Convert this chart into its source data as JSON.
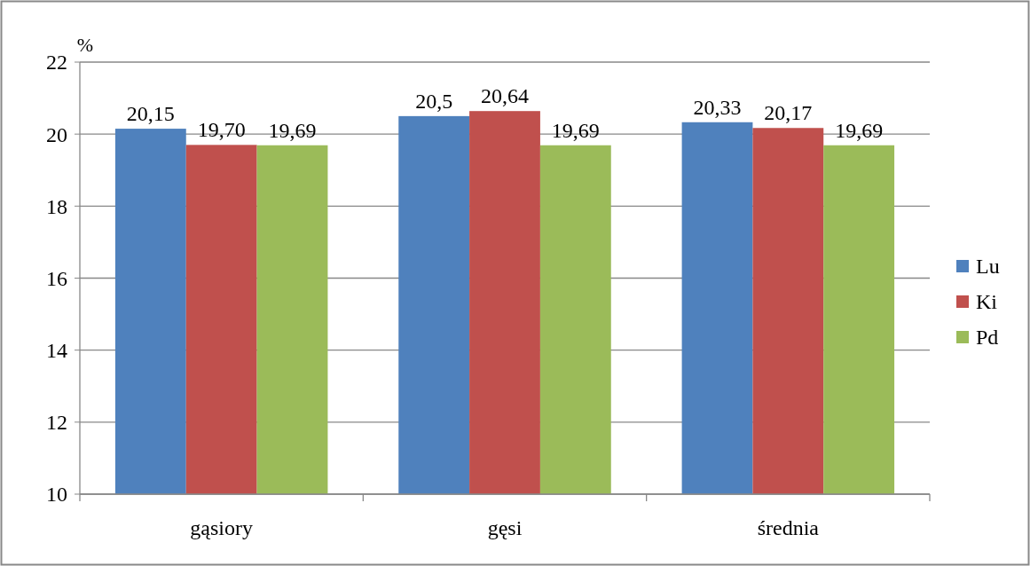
{
  "chart_data": {
    "type": "bar",
    "ylabel": "%",
    "categories": [
      "gąsiory",
      "gęsi",
      "średnia"
    ],
    "series": [
      {
        "name": "Lu",
        "color": "#4f81bd",
        "values": [
          20.15,
          20.5,
          20.33
        ],
        "value_labels": [
          "20,15",
          "20,5",
          "20,33"
        ]
      },
      {
        "name": "Ki",
        "color": "#c0504d",
        "values": [
          19.7,
          20.64,
          20.17
        ],
        "value_labels": [
          "19,70",
          "20,64",
          "20,17"
        ]
      },
      {
        "name": "Pd",
        "color": "#9bbb59",
        "values": [
          19.69,
          19.69,
          19.69
        ],
        "value_labels": [
          "19,69",
          "19,69",
          "19,69"
        ]
      }
    ],
    "ylim": [
      10,
      22
    ],
    "yticks": [
      10,
      12,
      14,
      16,
      18,
      20,
      22
    ],
    "grid": "y",
    "legend": "right"
  }
}
